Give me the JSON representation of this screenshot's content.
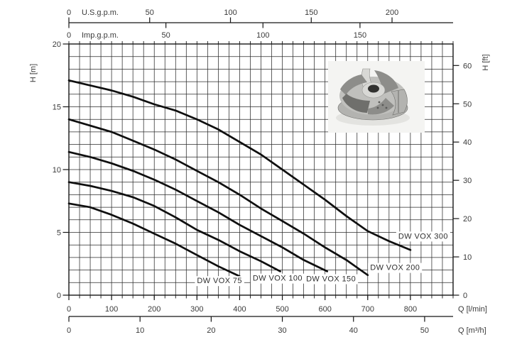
{
  "figure": {
    "background": "#ffffff",
    "line_color": "#161616",
    "grid_color": "#2b2b2b",
    "text_color": "#3a3a3a"
  },
  "chart_data": {
    "type": "line",
    "description": "Submersible pump head vs flow performance curves",
    "x_range_lmin": [
      0,
      900
    ],
    "y_range_m": [
      0,
      20
    ],
    "grid": {
      "minor_q_lmin": 25,
      "minor_h_m": 1,
      "grid_on": true
    },
    "x_axes": [
      {
        "id": "us_gpm",
        "label": "U.S.g.p.m.",
        "ticks": [
          0,
          50,
          100,
          150,
          200
        ],
        "lmin_per_unit": 3.785,
        "position": "top-above"
      },
      {
        "id": "imp_gpm",
        "label": "Imp.g.p.m.",
        "ticks": [
          0,
          50,
          100,
          150
        ],
        "lmin_per_unit": 4.546,
        "position": "top-below"
      },
      {
        "id": "q_lmin",
        "label": "Q [l/min]",
        "ticks": [
          0,
          100,
          200,
          300,
          400,
          500,
          600,
          700,
          800
        ],
        "lmin_per_unit": 1,
        "position": "bottom-upper"
      },
      {
        "id": "q_m3h",
        "label": "Q [m³/h]",
        "ticks": [
          0,
          10,
          20,
          30,
          40,
          50
        ],
        "lmin_per_unit": 16.6667,
        "position": "bottom-lower"
      }
    ],
    "y_axes": [
      {
        "id": "h_m",
        "label": "H [m]",
        "ticks": [
          0,
          5,
          10,
          15,
          20
        ],
        "m_per_unit": 1,
        "position": "left"
      },
      {
        "id": "h_ft",
        "label": "H [ft]",
        "ticks": [
          0,
          10,
          20,
          30,
          40,
          50,
          60
        ],
        "m_per_unit": 0.3048,
        "position": "right"
      }
    ],
    "series": [
      {
        "name": "DW VOX 75",
        "label_at": {
          "q": 353,
          "h": 0.95
        },
        "points": [
          [
            0,
            7.3
          ],
          [
            50,
            7.0
          ],
          [
            100,
            6.4
          ],
          [
            150,
            5.7
          ],
          [
            200,
            4.9
          ],
          [
            250,
            4.1
          ],
          [
            300,
            3.2
          ],
          [
            350,
            2.3
          ],
          [
            400,
            1.5
          ]
        ]
      },
      {
        "name": "DW VOX 100",
        "label_at": {
          "q": 489,
          "h": 1.15
        },
        "points": [
          [
            0,
            9.0
          ],
          [
            50,
            8.7
          ],
          [
            100,
            8.3
          ],
          [
            150,
            7.8
          ],
          [
            200,
            7.1
          ],
          [
            250,
            6.2
          ],
          [
            300,
            5.2
          ],
          [
            350,
            4.4
          ],
          [
            400,
            3.5
          ],
          [
            450,
            2.7
          ],
          [
            495,
            1.9
          ]
        ]
      },
      {
        "name": "DW VOX 150",
        "label_at": {
          "q": 614,
          "h": 1.1
        },
        "points": [
          [
            0,
            11.4
          ],
          [
            50,
            11.0
          ],
          [
            100,
            10.5
          ],
          [
            150,
            9.9
          ],
          [
            200,
            9.2
          ],
          [
            250,
            8.4
          ],
          [
            300,
            7.5
          ],
          [
            350,
            6.6
          ],
          [
            400,
            5.6
          ],
          [
            450,
            4.7
          ],
          [
            500,
            3.8
          ],
          [
            550,
            2.8
          ],
          [
            605,
            1.9
          ]
        ]
      },
      {
        "name": "DW VOX 200",
        "label_at": {
          "q": 764,
          "h": 2.0
        },
        "points": [
          [
            0,
            14.0
          ],
          [
            50,
            13.5
          ],
          [
            100,
            13.0
          ],
          [
            150,
            12.3
          ],
          [
            200,
            11.6
          ],
          [
            250,
            10.8
          ],
          [
            300,
            9.9
          ],
          [
            350,
            9.0
          ],
          [
            400,
            8.0
          ],
          [
            450,
            6.9
          ],
          [
            500,
            5.9
          ],
          [
            550,
            4.9
          ],
          [
            600,
            3.8
          ],
          [
            650,
            2.8
          ],
          [
            700,
            1.6
          ]
        ]
      },
      {
        "name": "DW VOX 300",
        "label_at": {
          "q": 830,
          "h": 4.5
        },
        "points": [
          [
            0,
            17.1
          ],
          [
            50,
            16.7
          ],
          [
            100,
            16.3
          ],
          [
            150,
            15.8
          ],
          [
            200,
            15.2
          ],
          [
            250,
            14.7
          ],
          [
            300,
            14.0
          ],
          [
            350,
            13.2
          ],
          [
            400,
            12.2
          ],
          [
            450,
            11.2
          ],
          [
            500,
            10.0
          ],
          [
            550,
            8.8
          ],
          [
            600,
            7.6
          ],
          [
            650,
            6.3
          ],
          [
            700,
            5.1
          ],
          [
            750,
            4.3
          ],
          [
            800,
            3.6
          ]
        ]
      }
    ]
  },
  "impeller_photo": {
    "name": "impeller-photo",
    "description": "metallic vortex impeller product photo",
    "background": "#f4f4f2",
    "metal_tones": [
      "#d8d8d5",
      "#b3b3b0",
      "#8d8d8a",
      "#6f6f6c",
      "#323230"
    ]
  }
}
